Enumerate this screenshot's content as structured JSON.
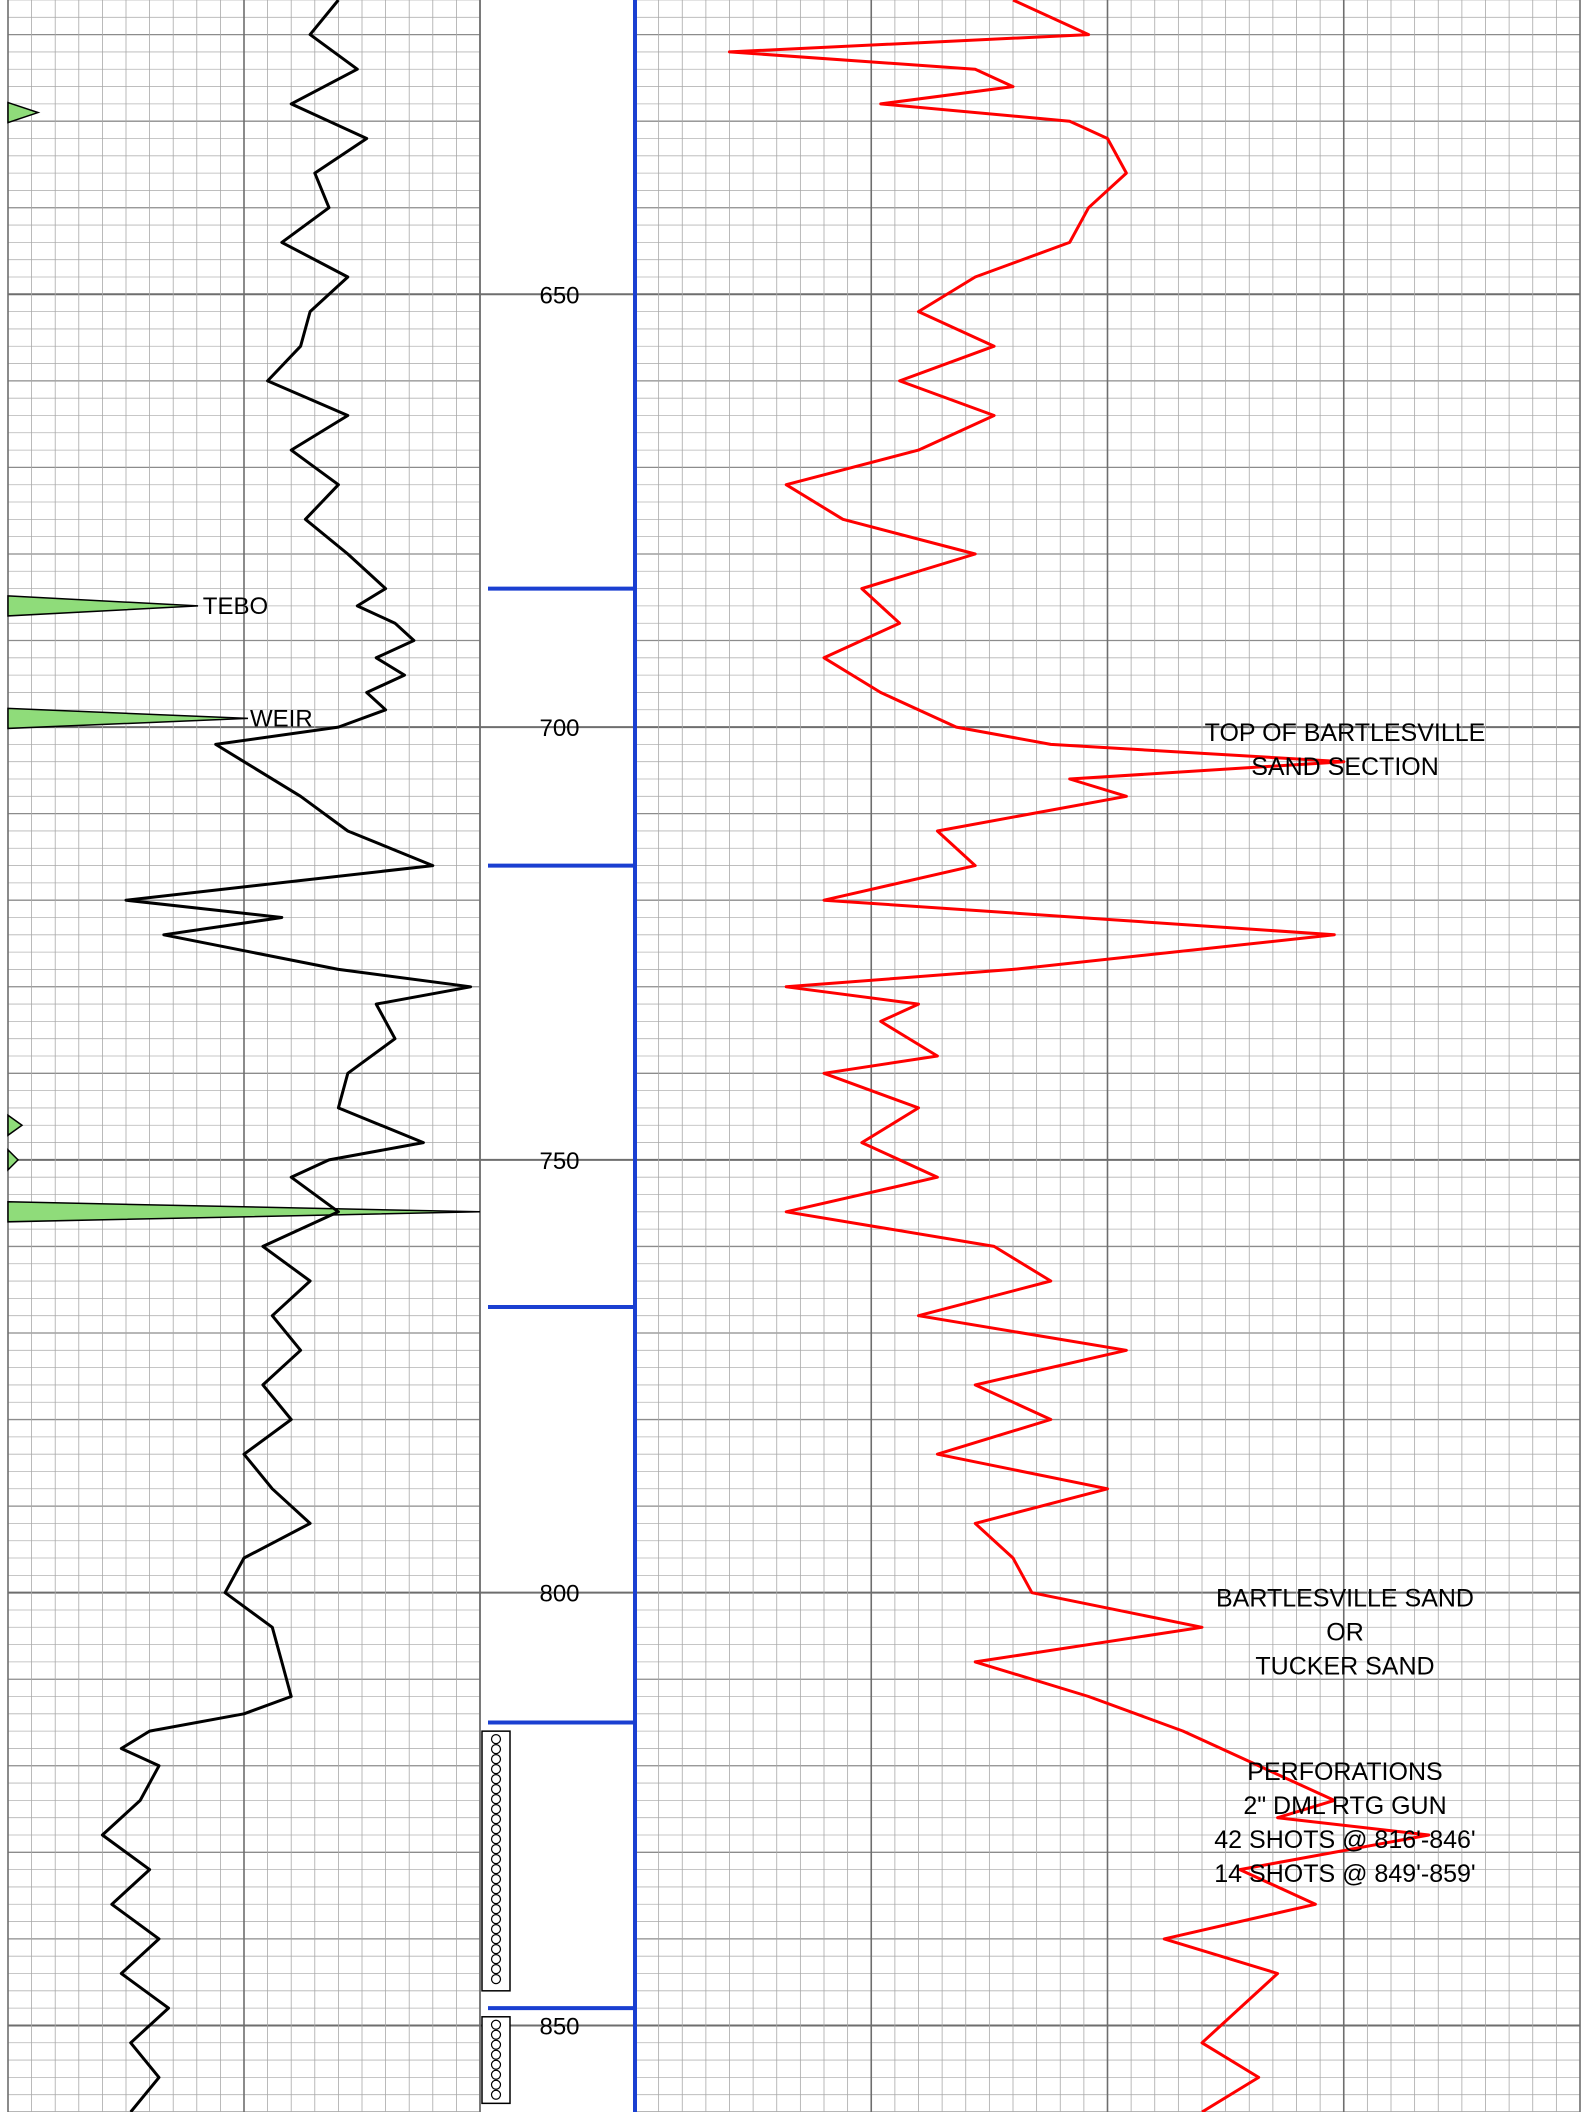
{
  "chart_data": {
    "type": "line",
    "title": "",
    "depth_axis": {
      "ylim": [
        616,
        860
      ],
      "tick_labels": [
        "650",
        "700",
        "750",
        "800",
        "850"
      ],
      "tick_values": [
        650,
        700,
        750,
        800,
        850
      ]
    },
    "tracks": [
      {
        "name": "",
        "color": "#000000",
        "xlim": [
          0,
          100
        ],
        "series": [
          {
            "name": "",
            "color": "#000000",
            "depth": [
              616,
              620,
              624,
              628,
              632,
              636,
              640,
              644,
              648,
              652,
              656,
              660,
              664,
              668,
              672,
              676,
              680,
              684,
              686,
              688,
              690,
              692,
              694,
              696,
              698,
              700,
              702,
              704,
              708,
              712,
              716,
              720,
              722,
              724,
              728,
              730,
              732,
              736,
              740,
              744,
              748,
              750,
              752,
              756,
              760,
              764,
              768,
              772,
              776,
              780,
              784,
              788,
              792,
              796,
              800,
              804,
              808,
              812,
              814,
              816,
              818,
              820,
              824,
              828,
              832,
              836,
              840,
              844,
              848,
              852,
              856,
              860
            ],
            "value": [
              70,
              64,
              74,
              60,
              76,
              65,
              68,
              58,
              72,
              64,
              62,
              55,
              72,
              60,
              70,
              63,
              72,
              80,
              74,
              82,
              86,
              78,
              84,
              76,
              80,
              70,
              44,
              50,
              62,
              72,
              90,
              25,
              58,
              33,
              70,
              98,
              78,
              82,
              72,
              70,
              88,
              68,
              60,
              70,
              54,
              64,
              56,
              62,
              54,
              60,
              50,
              56,
              64,
              50,
              46,
              56,
              58,
              60,
              50,
              30,
              24,
              32,
              28,
              20,
              30,
              22,
              32,
              24,
              34,
              26,
              32,
              26
            ]
          }
        ],
        "markers": [
          {
            "name": "",
            "depth": 686,
            "value": 40,
            "label": "TEBO"
          },
          {
            "name": "",
            "depth": 699,
            "value": 50,
            "label": "WEIR"
          }
        ]
      },
      {
        "name": "",
        "color": "#ff0000",
        "xlim": [
          0,
          100
        ],
        "series": [
          {
            "name": "",
            "color": "#ff0000",
            "depth": [
              616,
              620,
              622,
              624,
              626,
              628,
              630,
              632,
              636,
              640,
              644,
              648,
              652,
              656,
              660,
              664,
              668,
              672,
              676,
              680,
              684,
              688,
              692,
              696,
              700,
              702,
              704,
              706,
              708,
              712,
              716,
              720,
              724,
              728,
              730,
              732,
              734,
              738,
              740,
              744,
              748,
              752,
              756,
              760,
              764,
              768,
              772,
              776,
              780,
              784,
              788,
              792,
              796,
              800,
              804,
              808,
              812,
              816,
              820,
              824,
              826,
              828,
              832,
              836,
              840,
              844,
              848,
              852,
              856,
              860
            ],
            "value": [
              40,
              48,
              10,
              36,
              40,
              26,
              46,
              50,
              52,
              48,
              46,
              36,
              30,
              38,
              28,
              38,
              30,
              16,
              22,
              36,
              24,
              28,
              20,
              26,
              34,
              44,
              75,
              46,
              52,
              32,
              36,
              20,
              74,
              40,
              16,
              30,
              26,
              32,
              20,
              30,
              24,
              32,
              16,
              38,
              44,
              30,
              52,
              36,
              44,
              32,
              50,
              36,
              40,
              42,
              60,
              36,
              48,
              58,
              66,
              74,
              68,
              84,
              64,
              72,
              56,
              68,
              64,
              60,
              66,
              60
            ]
          }
        ]
      }
    ],
    "casing": {
      "tick_depths": [
        684,
        716,
        767,
        815,
        848
      ]
    },
    "perforations": [
      {
        "top": 816,
        "base": 846
      },
      {
        "top": 849,
        "base": 859
      }
    ],
    "annotations": [
      {
        "name": "top-of-bartlesville",
        "depth": 700,
        "lines": [
          "TOP OF BARTLESVILLE",
          "SAND SECTION"
        ]
      },
      {
        "name": "bartlesville-sand",
        "depth": 800,
        "lines": [
          "BARTLESVILLE SAND",
          "OR",
          "TUCKER SAND"
        ]
      },
      {
        "name": "perforations-note",
        "depth": 820,
        "lines": [
          "PERFORATIONS",
          "2\" DML RTG GUN",
          "42 SHOTS @ 816'-846'",
          "14 SHOTS @ 849'-859'"
        ]
      }
    ],
    "grid": true
  }
}
